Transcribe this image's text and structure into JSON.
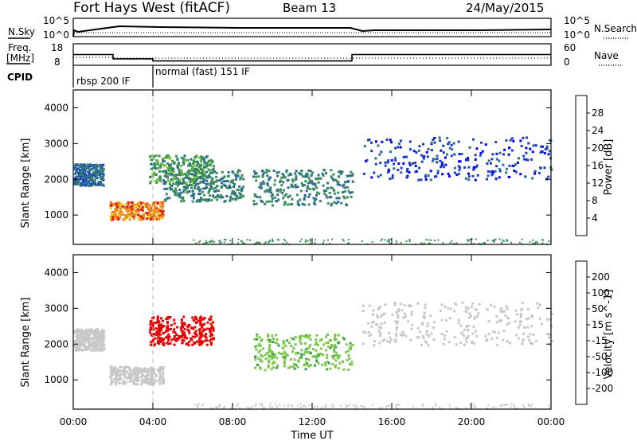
{
  "header": {
    "title": "Fort Hays West (fitACF)",
    "beam": "Beam 13",
    "date": "24/May/2015"
  },
  "noise_panel": {
    "left_label": "N.Sky",
    "right_label": "N.Search",
    "left_ticks": [
      "10^5",
      "10^0"
    ],
    "right_ticks": [
      "10^5",
      "10^0"
    ]
  },
  "freq_panel": {
    "left_label_1": "Freq.",
    "left_label_2": "[MHz]",
    "right_label": "Nave",
    "left_ticks": [
      "18",
      "8"
    ],
    "right_ticks": [
      "60",
      "0"
    ]
  },
  "cpid": {
    "label": "CPID",
    "modes": [
      {
        "name": "rbsp 200 IF",
        "start_hr": 0,
        "end_hr": 4
      },
      {
        "name": "normal (fast) 151 IF",
        "start_hr": 4,
        "end_hr": 24
      }
    ]
  },
  "chart_data": [
    {
      "type": "line",
      "title": "",
      "ylabel": "N.Sky",
      "series": [],
      "note_values": "sky noise (solid) and search noise (dotted) traces"
    },
    {
      "type": "line",
      "ylabel": "Freq. [MHz]",
      "ylim": [
        8,
        18
      ],
      "y2lim": [
        0,
        60
      ],
      "series": [
        {
          "x": [
            0,
            2,
            2,
            4,
            4,
            14,
            14,
            24
          ],
          "values": [
            13,
            13,
            11,
            11,
            10,
            10,
            13,
            13
          ]
        },
        {
          "x": [
            0,
            2,
            2,
            24
          ],
          "values": [
            22,
            22,
            20,
            20
          ]
        }
      ]
    },
    {
      "type": "heatmap",
      "xlabel": "",
      "ylabel": "Slant Range [km]",
      "xlim": [
        0,
        24
      ],
      "ylim": [
        180,
        4500
      ],
      "xticks": [
        0,
        4,
        8,
        12,
        16,
        20,
        24
      ],
      "xtick_labels": [
        "00:00",
        "04:00",
        "08:00",
        "12:00",
        "16:00",
        "20:00",
        "00:00"
      ],
      "yticks": [
        1000,
        2000,
        3000,
        4000
      ],
      "ytick_labels": [
        "1000",
        "2000",
        "3000",
        "4000"
      ],
      "colorbar": {
        "label": "Power [dB]",
        "ticks": [
          "4",
          "8",
          "12",
          "16",
          "20",
          "24",
          "28"
        ],
        "range": [
          0,
          30
        ]
      },
      "echo_regions": [
        {
          "t0": 0.0,
          "t1": 1.5,
          "r0": 1850,
          "r1": 2450,
          "value": 8
        },
        {
          "t0": 1.8,
          "t1": 4.5,
          "r0": 900,
          "r1": 1400,
          "value": 22
        },
        {
          "t0": 4.5,
          "t1": 8.5,
          "r0": 1400,
          "r1": 2300,
          "value": 10
        },
        {
          "t0": 3.8,
          "t1": 7.0,
          "r0": 1900,
          "r1": 2700,
          "value": 12
        },
        {
          "t0": 9.0,
          "t1": 14.0,
          "r0": 1300,
          "r1": 2300,
          "value": 10
        },
        {
          "t0": 14.5,
          "t1": 24.0,
          "r0": 2000,
          "r1": 3200,
          "value": 5
        }
      ]
    },
    {
      "type": "heatmap",
      "xlabel": "Time UT",
      "ylabel": "Slant Range [km]",
      "xlim": [
        0,
        24
      ],
      "ylim": [
        180,
        4500
      ],
      "xticks": [
        0,
        4,
        8,
        12,
        16,
        20,
        24
      ],
      "xtick_labels": [
        "00:00",
        "04:00",
        "08:00",
        "12:00",
        "16:00",
        "20:00",
        "00:00"
      ],
      "yticks": [
        1000,
        2000,
        3000,
        4000
      ],
      "ytick_labels": [
        "1000",
        "2000",
        "3000",
        "4000"
      ],
      "colorbar": {
        "label": "Velocity [m s^-1]",
        "ticks": [
          "200",
          "100",
          "50",
          "15",
          "-15",
          "-50",
          "-100",
          "-200"
        ]
      },
      "echo_regions": [
        {
          "t0": 0.0,
          "t1": 1.5,
          "r0": 1850,
          "r1": 2450,
          "value": 0
        },
        {
          "t0": 1.8,
          "t1": 4.5,
          "r0": 900,
          "r1": 1400,
          "value": 0
        },
        {
          "t0": 3.8,
          "t1": 7.0,
          "r0": 2000,
          "r1": 2800,
          "value": -220
        },
        {
          "t0": 9.0,
          "t1": 14.0,
          "r0": 1300,
          "r1": 2300,
          "value": 30
        },
        {
          "t0": 14.5,
          "t1": 24.0,
          "r0": 2000,
          "r1": 3200,
          "value": 0
        }
      ]
    }
  ]
}
